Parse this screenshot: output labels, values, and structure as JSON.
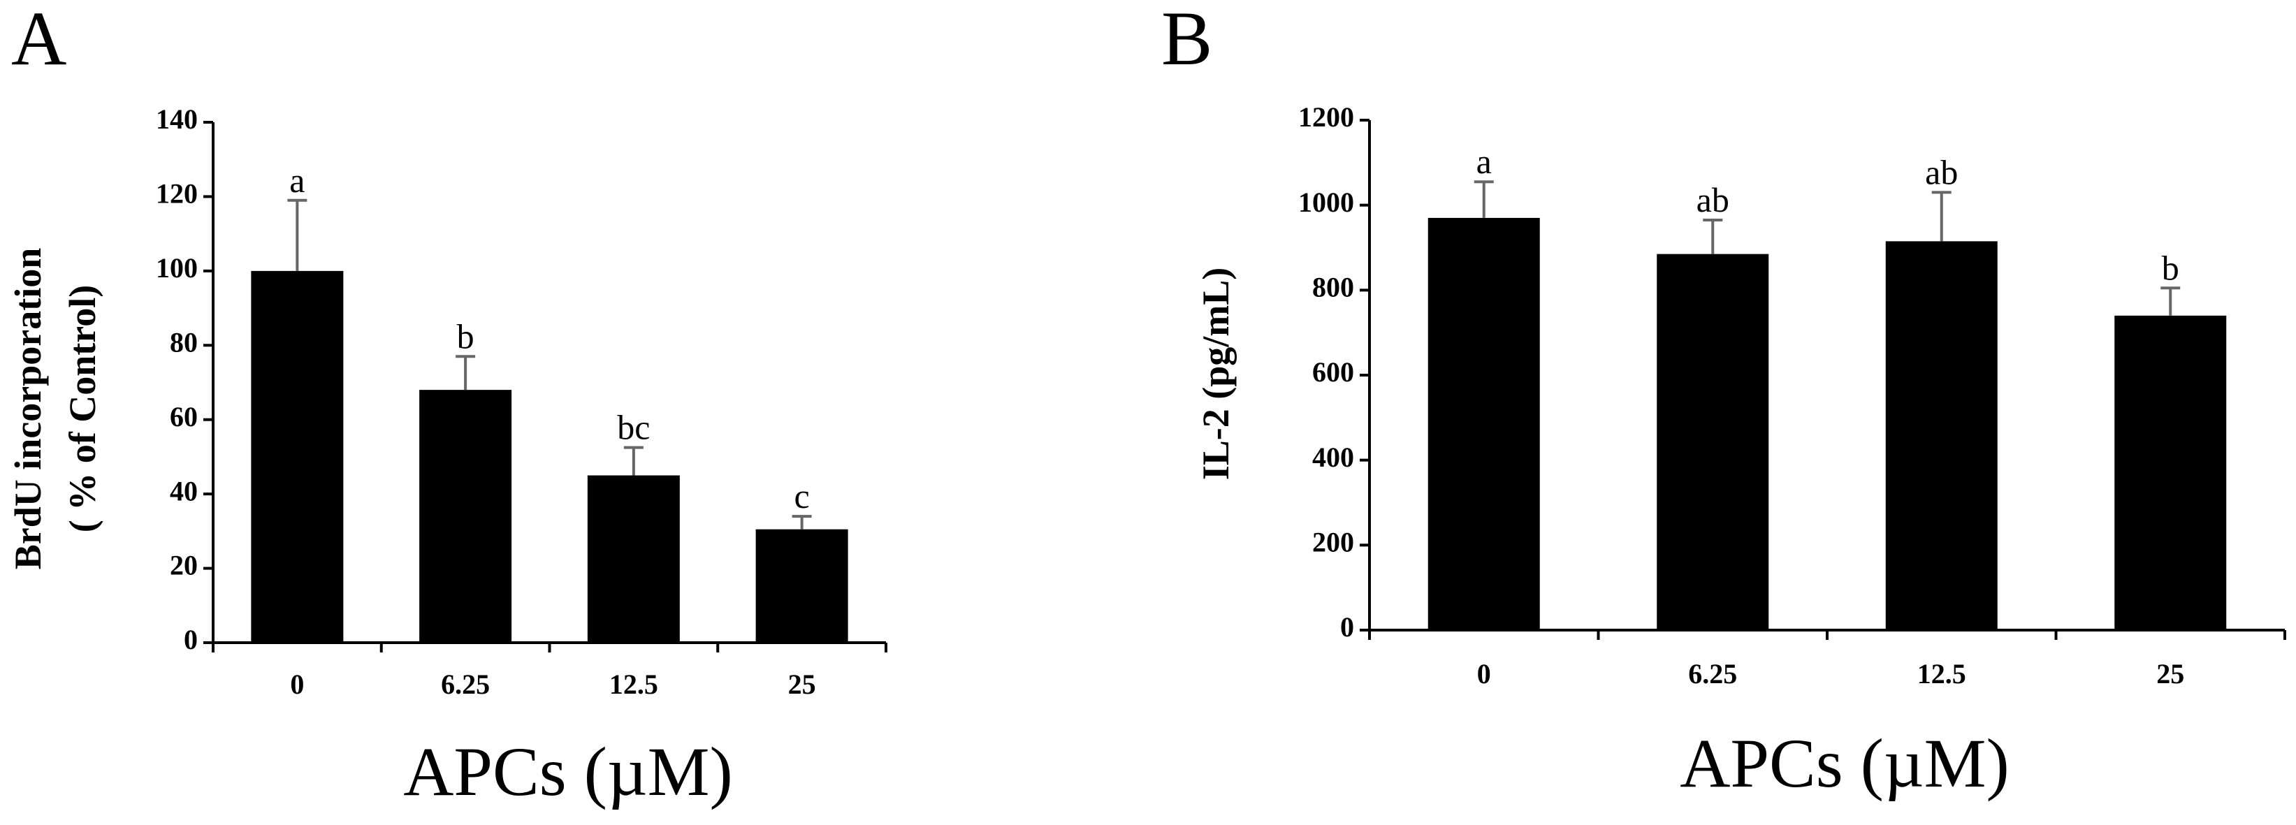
{
  "chart_data": [
    {
      "type": "bar",
      "panel": "A",
      "categories": [
        "0",
        "6.25",
        "12.5",
        "25"
      ],
      "values": [
        100,
        68,
        45,
        30.5
      ],
      "errors": [
        19,
        9,
        7.5,
        3.5
      ],
      "significance": [
        "a",
        "b",
        "bc",
        "c"
      ],
      "xlabel": "APCs (µM)",
      "ylabel_lines": [
        "BrdU incorporation",
        "( % of Control)"
      ],
      "ylim": [
        0,
        140
      ],
      "yticks": [
        "0",
        "20",
        "40",
        "60",
        "80",
        "100",
        "120",
        "140"
      ],
      "grid": false
    },
    {
      "type": "bar",
      "panel": "B",
      "categories": [
        "0",
        "6.25",
        "12.5",
        "25"
      ],
      "values": [
        970,
        885,
        915,
        740
      ],
      "errors": [
        85,
        80,
        115,
        65
      ],
      "significance": [
        "a",
        "ab",
        "ab",
        "b"
      ],
      "xlabel": "APCs (µM)",
      "ylabel_lines": [
        "IL-2 (pg/mL)"
      ],
      "ylim": [
        0,
        1200
      ],
      "yticks": [
        "0",
        "200",
        "400",
        "600",
        "800",
        "1000",
        "1200"
      ],
      "grid": false
    }
  ]
}
